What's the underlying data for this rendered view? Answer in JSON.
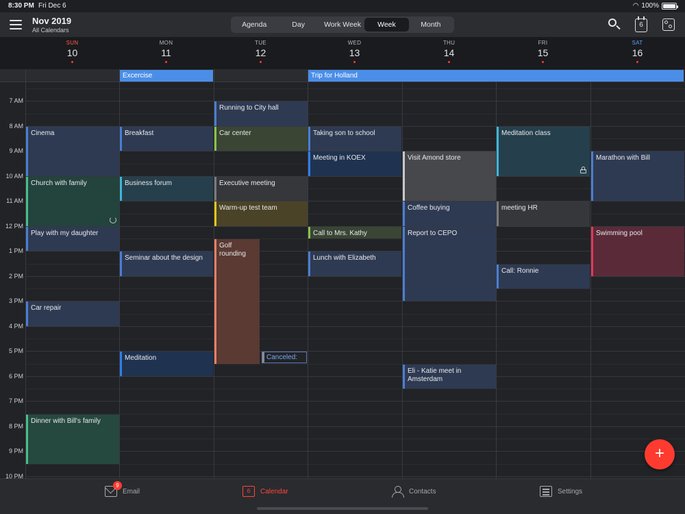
{
  "status_bar": {
    "time": "8:30 PM",
    "date": "Fri Dec 6",
    "battery": "100%"
  },
  "header": {
    "title": "Nov 2019",
    "subtitle": "All Calendars",
    "view_tabs": [
      "Agenda",
      "Day",
      "Work Week",
      "Week",
      "Month"
    ],
    "active_view": "Week",
    "today_icon_label": "6"
  },
  "days": [
    {
      "dow": "SUN",
      "date": "10",
      "has_events": true
    },
    {
      "dow": "MON",
      "date": "11",
      "has_events": true
    },
    {
      "dow": "TUE",
      "date": "12",
      "has_events": true
    },
    {
      "dow": "WED",
      "date": "13",
      "has_events": true
    },
    {
      "dow": "THU",
      "date": "14",
      "has_events": true
    },
    {
      "dow": "FRI",
      "date": "15",
      "has_events": true
    },
    {
      "dow": "SAT",
      "date": "16",
      "has_events": true
    }
  ],
  "all_day_events": [
    {
      "title": "Excercise",
      "start_day": 1,
      "end_day": 1
    },
    {
      "title": "Trip for Holland",
      "start_day": 3,
      "end_day": 6
    }
  ],
  "time_labels": [
    "7 AM",
    "8 AM",
    "9 AM",
    "10 AM",
    "11 AM",
    "12 PM",
    "1 PM",
    "2 PM",
    "3 PM",
    "4 PM",
    "5 PM",
    "6 PM",
    "7 PM",
    "8 PM",
    "9 PM",
    "10 PM"
  ],
  "events": [
    {
      "title": "Cinema",
      "day": 0,
      "start": 8.0,
      "end": 10.0,
      "color": "#4a7fd4",
      "bg": "#2e3a52"
    },
    {
      "title": "Church with family",
      "day": 0,
      "start": 10.0,
      "end": 12.0,
      "color": "#46c08a",
      "bg": "#23433d",
      "icon": "refresh-icon"
    },
    {
      "title": "Play with my daughter",
      "day": 0,
      "start": 12.0,
      "end": 13.0,
      "color": "#4a7fd4",
      "bg": "#2e3a52"
    },
    {
      "title": "Car repair",
      "day": 0,
      "start": 15.0,
      "end": 16.0,
      "color": "#4a7fd4",
      "bg": "#2e3a52"
    },
    {
      "title": "Dinner with Bill's family",
      "day": 0,
      "start": 19.5,
      "end": 21.5,
      "color": "#46c08a",
      "bg": "#25483f"
    },
    {
      "title": "Breakfast",
      "day": 1,
      "start": 8.0,
      "end": 9.0,
      "color": "#4a7fd4",
      "bg": "#2e3a52"
    },
    {
      "title": "Business forum",
      "day": 1,
      "start": 10.0,
      "end": 11.0,
      "color": "#3fb6d8",
      "bg": "#25404c"
    },
    {
      "title": "Seminar about the design",
      "day": 1,
      "start": 13.0,
      "end": 14.0,
      "color": "#4a7fd4",
      "bg": "#2e3a52"
    },
    {
      "title": "Meditation",
      "day": 1,
      "start": 17.0,
      "end": 18.0,
      "color": "#2f7fe8",
      "bg": "#1f3350"
    },
    {
      "title": "Running to City hall",
      "day": 2,
      "start": 7.0,
      "end": 8.0,
      "color": "#4a7fd4",
      "bg": "#2e3a52"
    },
    {
      "title": "Car center",
      "day": 2,
      "start": 8.0,
      "end": 9.0,
      "color": "#8bc34a",
      "bg": "#3a4534"
    },
    {
      "title": "Executive meeting",
      "day": 2,
      "start": 10.0,
      "end": 11.0,
      "color": "#7a7b80",
      "bg": "#36373b"
    },
    {
      "title": "Warm-up test team",
      "day": 2,
      "start": 11.0,
      "end": 12.0,
      "color": "#e6c51c",
      "bg": "#4a4327"
    },
    {
      "title": "Golf rounding",
      "day": 2,
      "start": 12.5,
      "end": 17.5,
      "color": "#e9806a",
      "bg": "#5a3a33",
      "half": true
    },
    {
      "title": "Taking son to school",
      "day": 3,
      "start": 8.0,
      "end": 9.0,
      "color": "#4a7fd4",
      "bg": "#2e3a52"
    },
    {
      "title": "Meeting in KOEX",
      "day": 3,
      "start": 9.0,
      "end": 10.0,
      "color": "#2f7fe8",
      "bg": "#1f3350"
    },
    {
      "title": "Call to Mrs. Kathy",
      "day": 3,
      "start": 12.0,
      "end": 12.5,
      "color": "#8bc34a",
      "bg": "#3a4534"
    },
    {
      "title": "Lunch with Elizabeth",
      "day": 3,
      "start": 13.0,
      "end": 14.0,
      "color": "#4a7fd4",
      "bg": "#2e3a52"
    },
    {
      "title": "Visit Amond store",
      "day": 4,
      "start": 9.0,
      "end": 11.0,
      "color": "#c8c8cc",
      "bg": "#47484c"
    },
    {
      "title": "Coffee buying",
      "day": 4,
      "start": 11.0,
      "end": 12.0,
      "color": "#4a7fd4",
      "bg": "#2e3a52"
    },
    {
      "title": "Report to CEPO",
      "day": 4,
      "start": 12.0,
      "end": 15.0,
      "color": "#4a7fd4",
      "bg": "#2e3a52"
    },
    {
      "title": "Eli - Katie meet in Amsterdam",
      "day": 4,
      "start": 17.5,
      "end": 18.5,
      "color": "#4a7fd4",
      "bg": "#2e3a52"
    },
    {
      "title": "Meditation class",
      "day": 5,
      "start": 8.0,
      "end": 10.0,
      "color": "#3fb6d8",
      "bg": "#25404c",
      "icon": "lock-icon"
    },
    {
      "title": "meeting HR",
      "day": 5,
      "start": 11.0,
      "end": 12.0,
      "color": "#7a7b80",
      "bg": "#36373b"
    },
    {
      "title": "Call: Ronnie",
      "day": 5,
      "start": 13.5,
      "end": 14.5,
      "color": "#4a7fd4",
      "bg": "#2e3a52"
    },
    {
      "title": "Marathon with Bill",
      "day": 6,
      "start": 9.0,
      "end": 11.0,
      "color": "#4a7fd4",
      "bg": "#2e3a52"
    },
    {
      "title": "Swimming pool",
      "day": 6,
      "start": 12.0,
      "end": 14.0,
      "color": "#e0395a",
      "bg": "#5a2a38"
    }
  ],
  "canceled_event": {
    "label": "Canceled:",
    "day": 2,
    "start": 17.0
  },
  "fab_label": "+",
  "tab_bar": {
    "items": [
      {
        "label": "Email",
        "icon": "mail-icon",
        "badge": "9"
      },
      {
        "label": "Calendar",
        "icon": "calendar-icon",
        "cal_num": "6",
        "active": true
      },
      {
        "label": "Contacts",
        "icon": "contacts-icon"
      },
      {
        "label": "Settings",
        "icon": "settings-icon"
      }
    ]
  },
  "colors": {
    "accent": "#ff3b30",
    "allday": "#4a8ee8",
    "sunday": "#ff5a4e",
    "saturday": "#5aa0ff"
  }
}
